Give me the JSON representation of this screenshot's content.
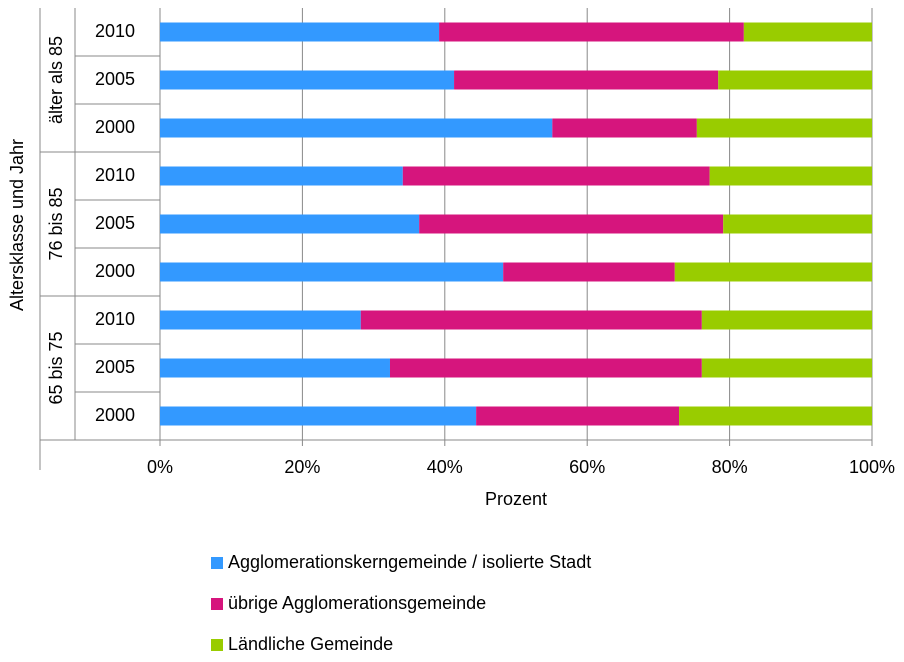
{
  "chart_data": {
    "type": "stacked-bar-horizontal",
    "y_label": "Altersklasse und Jahr",
    "x_label": "Prozent",
    "groups": [
      {
        "label": "älter als 85",
        "categories": [
          "2010",
          "2005",
          "2000"
        ]
      },
      {
        "label": "76 bis 85",
        "categories": [
          "2010",
          "2005",
          "2000"
        ]
      },
      {
        "label": "65 bis 75",
        "categories": [
          "2010",
          "2005",
          "2000"
        ]
      }
    ],
    "series": [
      {
        "name": "Agglomerationskerngemeinde / isolierte Stadt",
        "color": "#3399ff",
        "values": [
          39.2,
          41.3,
          55.1,
          34.1,
          36.4,
          48.2,
          28.2,
          32.3,
          44.4
        ]
      },
      {
        "name": "übrige Agglomerationsgemeinde",
        "color": "#d6157d",
        "values": [
          42.8,
          37.1,
          20.3,
          43.1,
          42.7,
          24.1,
          47.9,
          43.8,
          28.5
        ]
      },
      {
        "name": "Ländliche Gemeinde",
        "color": "#99cc00",
        "values": [
          18.0,
          21.6,
          24.6,
          22.8,
          20.9,
          27.7,
          23.9,
          23.9,
          27.1
        ]
      }
    ],
    "xlim": [
      0,
      100
    ],
    "xticks": [
      {
        "value": 0,
        "label": "0%"
      },
      {
        "value": 20,
        "label": "20%"
      },
      {
        "value": 40,
        "label": "40%"
      },
      {
        "value": 60,
        "label": "60%"
      },
      {
        "value": 80,
        "label": "80%"
      },
      {
        "value": 100,
        "label": "100%"
      }
    ],
    "grid": true,
    "legend": "bottom"
  }
}
